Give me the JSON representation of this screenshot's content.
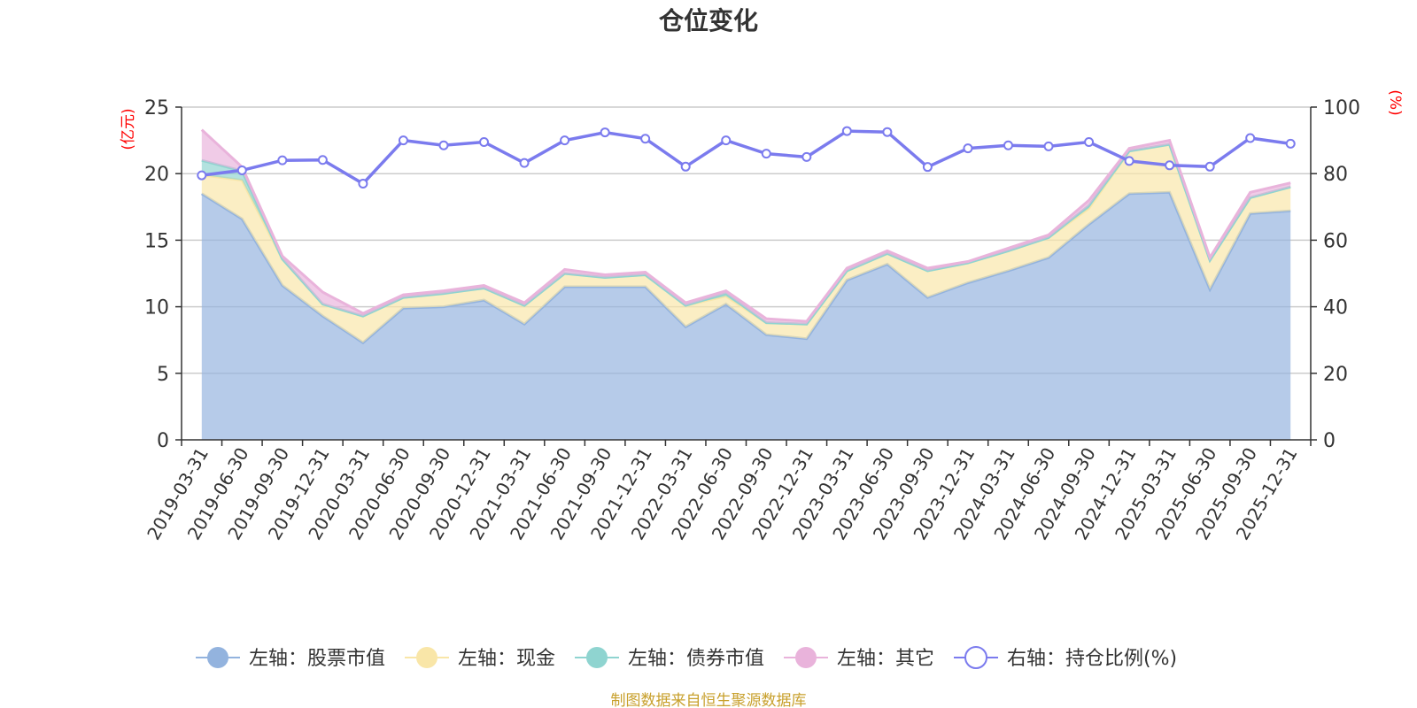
{
  "chart_data": {
    "type": "area",
    "title": "仓位变化",
    "left_axis": {
      "unit": "(亿元)",
      "min": 0,
      "max": 25,
      "ticks": [
        0,
        5,
        10,
        15,
        20,
        25
      ]
    },
    "right_axis": {
      "unit": "(%)",
      "min": 0,
      "max": 100,
      "ticks": [
        0,
        20,
        40,
        60,
        80,
        100
      ]
    },
    "grid": true,
    "legend_position": "bottom",
    "categories": [
      "2019-03-31",
      "2019-06-30",
      "2019-09-30",
      "2019-12-31",
      "2020-03-31",
      "2020-06-30",
      "2020-09-30",
      "2020-12-31",
      "2021-03-31",
      "2021-06-30",
      "2021-09-30",
      "2021-12-31",
      "2022-03-31",
      "2022-06-30",
      "2022-09-30",
      "2022-12-31",
      "2023-03-31",
      "2023-06-30",
      "2023-09-30",
      "2023-12-31",
      "2024-03-31",
      "2024-06-30",
      "2024-09-30",
      "2024-12-31",
      "2025-03-31",
      "2025-06-30",
      "2025-09-30",
      "2025-12-31"
    ],
    "series": [
      {
        "name": "左轴：股票市值",
        "axis": "left",
        "color": "#93b3de",
        "values": [
          18.5,
          16.6,
          11.6,
          9.3,
          7.3,
          9.9,
          10.0,
          10.5,
          8.7,
          11.5,
          11.5,
          11.5,
          8.5,
          10.2,
          7.9,
          7.6,
          12.0,
          13.2,
          10.7,
          11.8,
          12.7,
          13.7,
          16.2,
          18.5,
          18.6,
          11.3,
          17.0,
          17.2
        ]
      },
      {
        "name": "左轴：现金",
        "axis": "left",
        "color": "#f9e6a8",
        "values": [
          1.4,
          2.9,
          2.0,
          0.9,
          2.0,
          0.8,
          1.0,
          0.9,
          1.4,
          1.0,
          0.7,
          0.9,
          1.6,
          0.6,
          0.9,
          1.1,
          0.7,
          0.8,
          2.0,
          1.5,
          1.5,
          1.5,
          1.2,
          3.2,
          3.6,
          2.2,
          1.2,
          1.8
        ]
      },
      {
        "name": "左轴：债券市值",
        "axis": "left",
        "color": "#8fd4d0",
        "values": [
          1.1,
          0.7,
          0.0,
          0.0,
          0.0,
          0.0,
          0.0,
          0.0,
          0.0,
          0.0,
          0.0,
          0.0,
          0.0,
          0.2,
          0.0,
          0.0,
          0.0,
          0.0,
          0.0,
          0.0,
          0.0,
          0.0,
          0.2,
          0.0,
          0.0,
          0.0,
          0.0,
          0.0
        ]
      },
      {
        "name": "左轴：其它",
        "axis": "left",
        "color": "#e9b3db",
        "values": [
          2.3,
          0.3,
          0.2,
          0.9,
          0.2,
          0.2,
          0.2,
          0.2,
          0.2,
          0.3,
          0.2,
          0.2,
          0.2,
          0.2,
          0.3,
          0.2,
          0.2,
          0.2,
          0.2,
          0.1,
          0.2,
          0.2,
          0.4,
          0.2,
          0.3,
          0.2,
          0.4,
          0.3
        ]
      },
      {
        "name": "右轴：持仓比例(%)",
        "axis": "right",
        "color": "#7b7bee",
        "values": [
          79.5,
          81,
          84,
          84.1,
          77,
          90,
          88.5,
          89.5,
          83.2,
          90,
          92.4,
          90.5,
          82.1,
          90,
          86,
          85,
          92.8,
          92.5,
          82,
          87.6,
          88.5,
          88.2,
          89.5,
          83.8,
          82.5,
          82.1,
          90.7,
          89
        ]
      }
    ]
  },
  "footer": {
    "source": "制图数据来自恒生聚源数据库"
  }
}
